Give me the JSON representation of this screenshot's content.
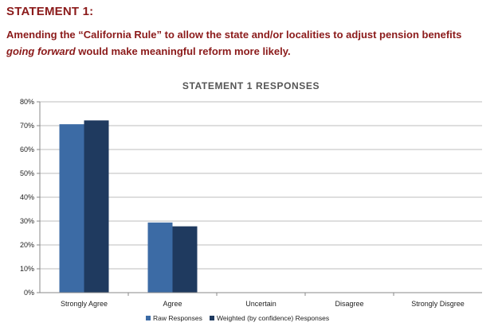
{
  "heading": "STATEMENT 1:",
  "statement": {
    "part1": "Amending the “California Rule” to allow the state and/or localities to adjust pension benefits ",
    "emphasis": "going forward",
    "part2": " would make meaningful reform more likely."
  },
  "colors": {
    "heading": "#8b1a1a",
    "raw": "#3c6ba5",
    "weighted": "#1f3a5f"
  },
  "chart_data": {
    "type": "bar",
    "title": "STATEMENT  1 RESPONSES",
    "categories": [
      "Strongly Agree",
      "Agree",
      "Uncertain",
      "Disagree",
      "Strongly Disgree"
    ],
    "series": [
      {
        "name": "Raw Responses",
        "values": [
          70.6,
          29.4,
          0,
          0,
          0
        ]
      },
      {
        "name": "Weighted (by confidence) Responses",
        "values": [
          72.2,
          27.8,
          0,
          0,
          0
        ]
      }
    ],
    "y_ticks": [
      "0%",
      "10%",
      "20%",
      "30%",
      "40%",
      "50%",
      "60%",
      "70%",
      "80%"
    ],
    "ylim": [
      0,
      80
    ],
    "y_unit": "%",
    "grid": true,
    "legend_position": "bottom-center"
  }
}
